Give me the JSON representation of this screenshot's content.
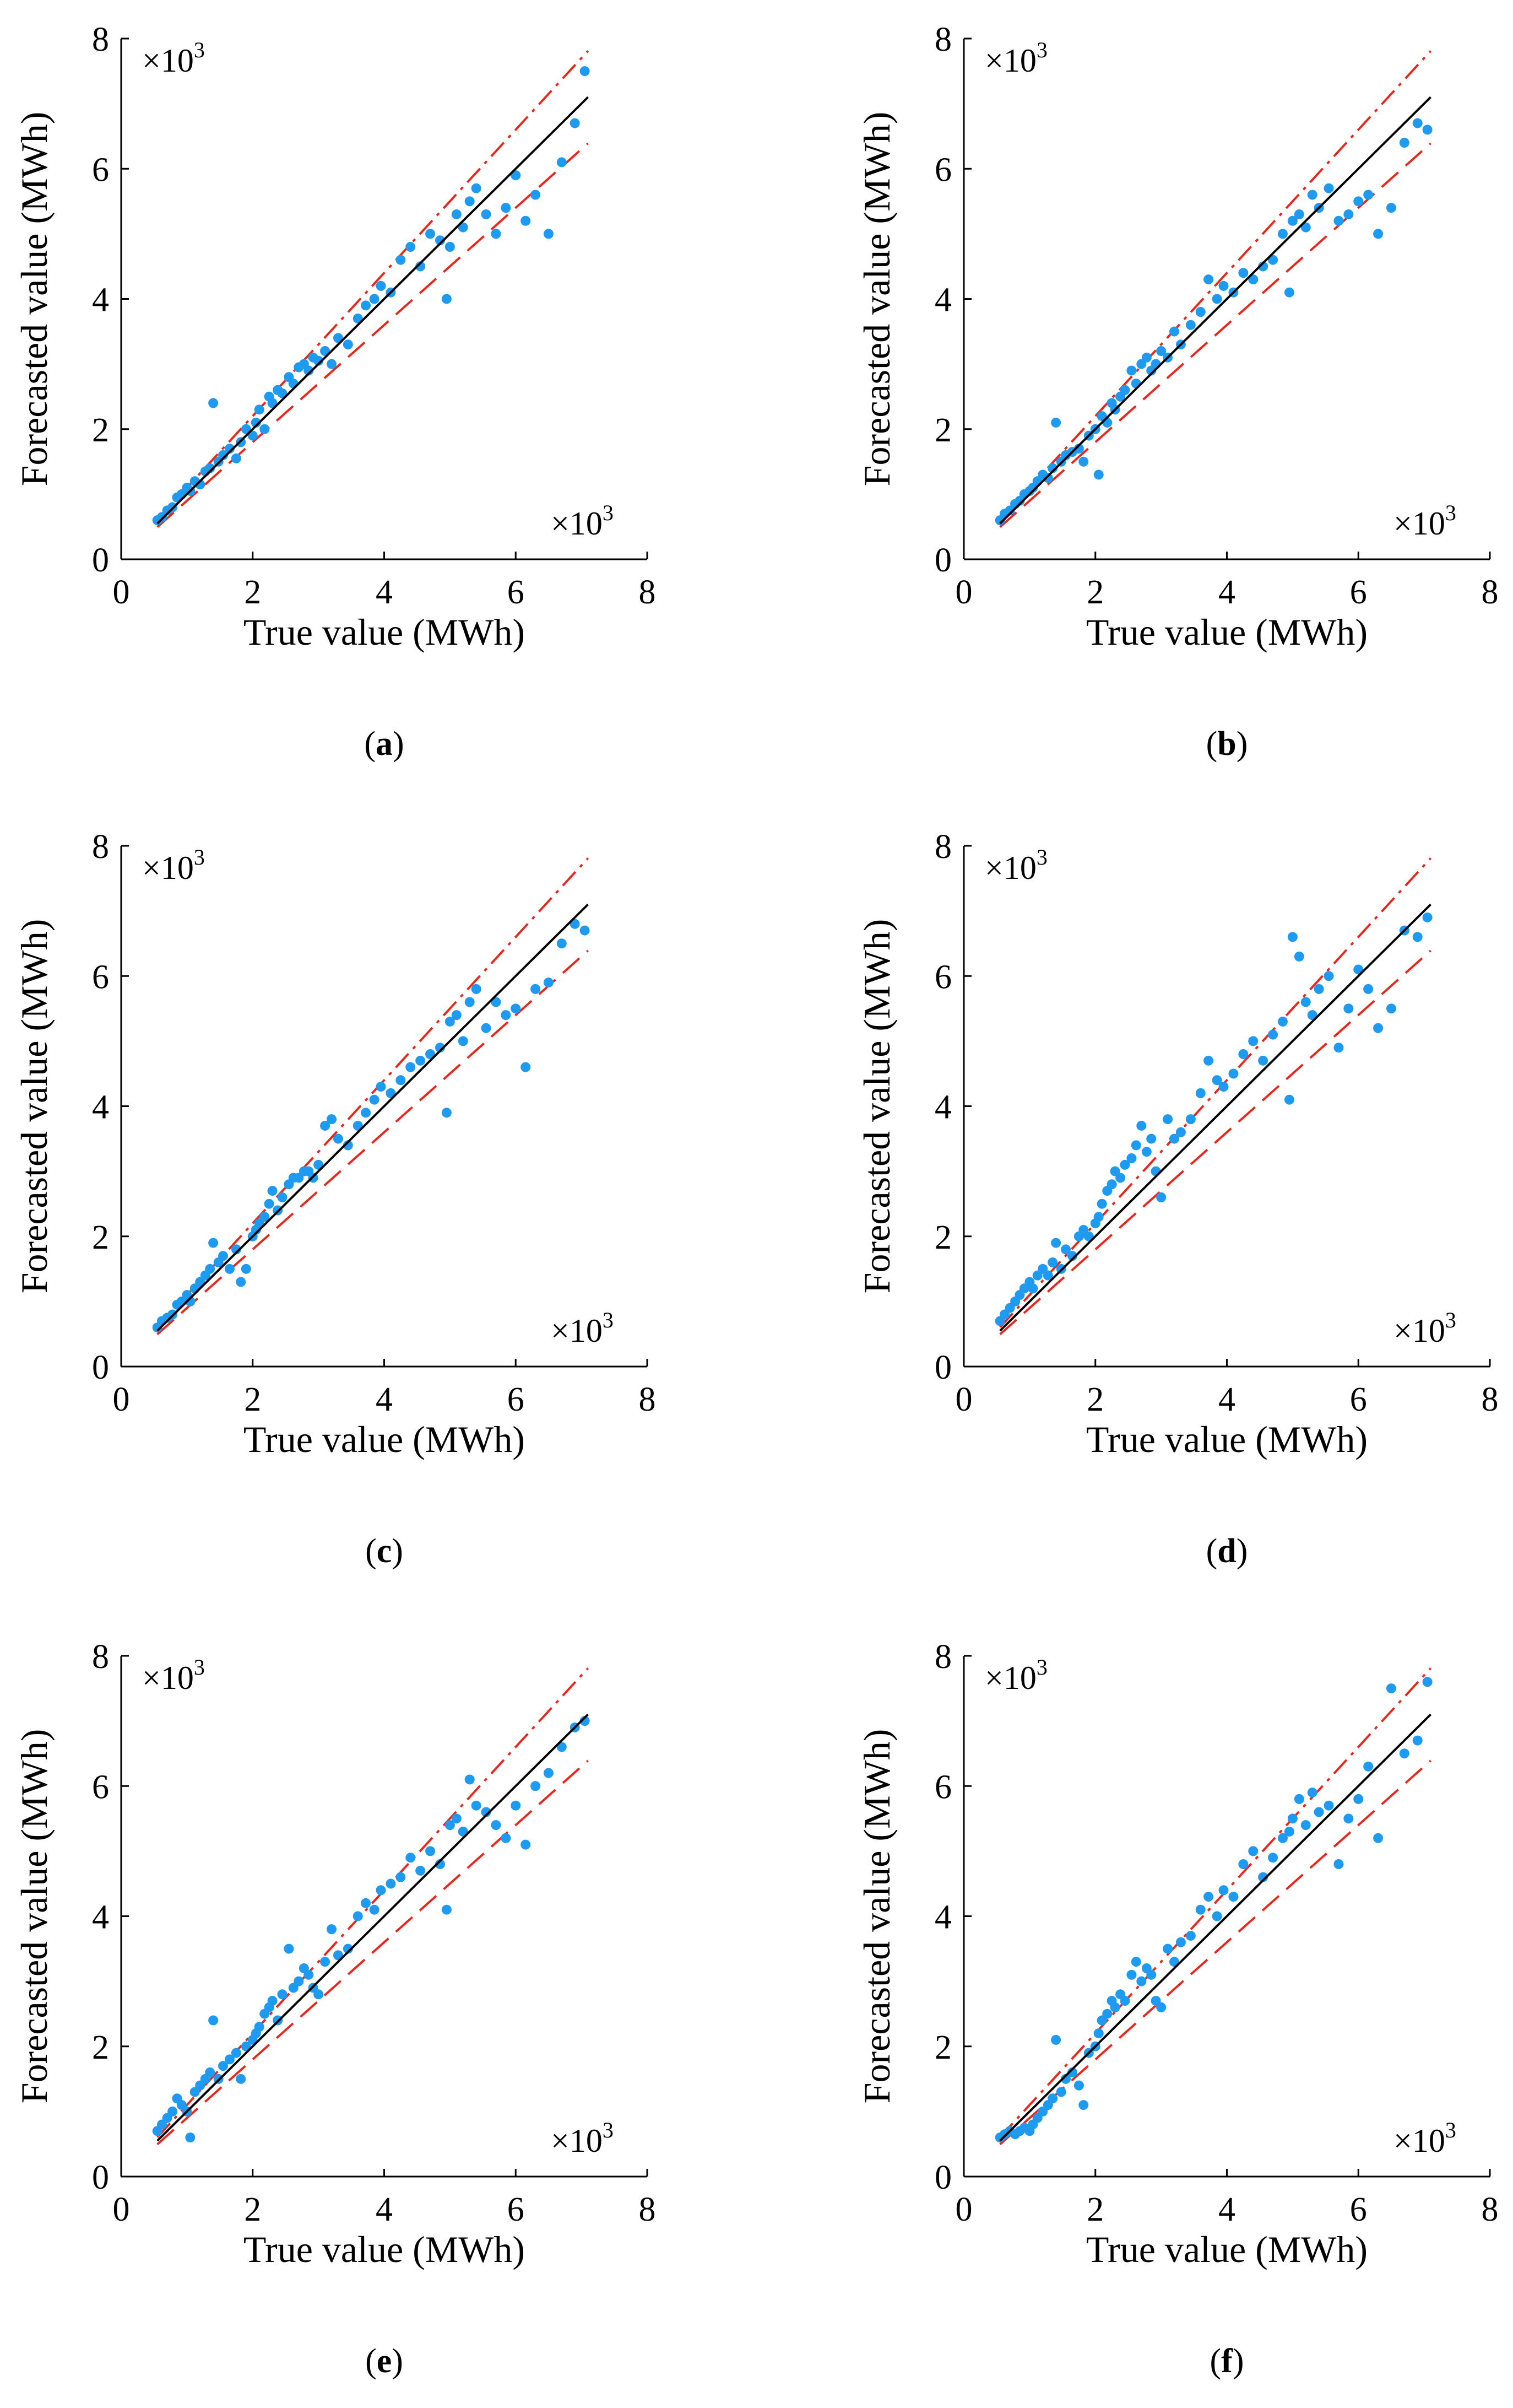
{
  "figure": {
    "panels": [
      "a",
      "b",
      "c",
      "d",
      "e",
      "f"
    ]
  },
  "chart_data": [
    {
      "id": "a",
      "caption_letter": "a",
      "type": "scatter",
      "xlabel": "True value (MWh)",
      "ylabel": "Forecasted value (MWh)",
      "xlim": [
        0,
        8
      ],
      "ylim": [
        0,
        8
      ],
      "xticks": [
        "0",
        "2",
        "4",
        "6",
        "8"
      ],
      "yticks": [
        "0",
        "2",
        "4",
        "6",
        "8"
      ],
      "x_scale_label": "×10",
      "y_scale_label": "×10",
      "scale_exponent": "3",
      "reference_lines": {
        "identity_slope": 1.0,
        "upper_bound_slope": 1.1,
        "lower_bound_slope": 0.9,
        "x_range": [
          0.55,
          7.1
        ]
      },
      "series": [
        {
          "name": "forecast",
          "color": "#1e9bf0",
          "x": [
            0.55,
            0.62,
            0.7,
            0.78,
            0.85,
            0.92,
            1.0,
            1.05,
            1.12,
            1.2,
            1.28,
            1.35,
            1.4,
            1.48,
            1.55,
            1.65,
            1.75,
            1.82,
            1.9,
            2.0,
            2.05,
            2.1,
            2.18,
            2.25,
            2.3,
            2.38,
            2.45,
            2.55,
            2.62,
            2.7,
            2.78,
            2.85,
            2.92,
            3.0,
            3.1,
            3.2,
            3.3,
            3.45,
            3.6,
            3.72,
            3.85,
            3.95,
            4.1,
            4.25,
            4.4,
            4.55,
            4.7,
            4.85,
            4.95,
            5.0,
            5.1,
            5.2,
            5.3,
            5.4,
            5.55,
            5.7,
            5.85,
            6.0,
            6.15,
            6.3,
            6.5,
            6.7,
            6.9,
            7.05
          ],
          "y": [
            0.6,
            0.65,
            0.75,
            0.8,
            0.95,
            1.0,
            1.1,
            1.05,
            1.2,
            1.15,
            1.35,
            1.4,
            2.4,
            1.5,
            1.6,
            1.7,
            1.55,
            1.8,
            2.0,
            1.9,
            2.1,
            2.3,
            2.0,
            2.5,
            2.4,
            2.6,
            2.55,
            2.8,
            2.7,
            2.95,
            3.0,
            2.9,
            3.1,
            3.05,
            3.2,
            3.0,
            3.4,
            3.3,
            3.7,
            3.9,
            4.0,
            4.2,
            4.1,
            4.6,
            4.8,
            4.5,
            5.0,
            4.9,
            4.0,
            4.8,
            5.3,
            5.1,
            5.5,
            5.7,
            5.3,
            5.0,
            5.4,
            5.9,
            5.2,
            5.6,
            5.0,
            6.1,
            6.7,
            7.5
          ]
        }
      ]
    },
    {
      "id": "b",
      "caption_letter": "b",
      "type": "scatter",
      "xlabel": "True value (MWh)",
      "ylabel": "Forecasted value (MWh)",
      "xlim": [
        0,
        8
      ],
      "ylim": [
        0,
        8
      ],
      "xticks": [
        "0",
        "2",
        "4",
        "6",
        "8"
      ],
      "yticks": [
        "0",
        "2",
        "4",
        "6",
        "8"
      ],
      "x_scale_label": "×10",
      "y_scale_label": "×10",
      "scale_exponent": "3",
      "reference_lines": {
        "identity_slope": 1.0,
        "upper_bound_slope": 1.1,
        "lower_bound_slope": 0.9,
        "x_range": [
          0.55,
          7.1
        ]
      },
      "series": [
        {
          "name": "forecast",
          "color": "#1e9bf0",
          "x": [
            0.55,
            0.62,
            0.7,
            0.78,
            0.85,
            0.92,
            1.0,
            1.05,
            1.12,
            1.2,
            1.28,
            1.35,
            1.4,
            1.48,
            1.55,
            1.65,
            1.75,
            1.82,
            1.9,
            2.0,
            2.05,
            2.1,
            2.18,
            2.25,
            2.3,
            2.38,
            2.45,
            2.55,
            2.62,
            2.7,
            2.78,
            2.85,
            2.92,
            3.0,
            3.1,
            3.2,
            3.3,
            3.45,
            3.6,
            3.72,
            3.85,
            3.95,
            4.1,
            4.25,
            4.4,
            4.55,
            4.7,
            4.85,
            4.95,
            5.0,
            5.1,
            5.2,
            5.3,
            5.4,
            5.55,
            5.7,
            5.85,
            6.0,
            6.15,
            6.3,
            6.5,
            6.7,
            6.9,
            7.05
          ],
          "y": [
            0.6,
            0.7,
            0.75,
            0.85,
            0.9,
            1.0,
            1.05,
            1.1,
            1.2,
            1.3,
            1.25,
            1.4,
            2.1,
            1.5,
            1.6,
            1.65,
            1.7,
            1.5,
            1.9,
            2.0,
            1.3,
            2.2,
            2.1,
            2.4,
            2.3,
            2.5,
            2.6,
            2.9,
            2.7,
            3.0,
            3.1,
            2.9,
            3.0,
            3.2,
            3.1,
            3.5,
            3.3,
            3.6,
            3.8,
            4.3,
            4.0,
            4.2,
            4.1,
            4.4,
            4.3,
            4.5,
            4.6,
            5.0,
            4.1,
            5.2,
            5.3,
            5.1,
            5.6,
            5.4,
            5.7,
            5.2,
            5.3,
            5.5,
            5.6,
            5.0,
            5.4,
            6.4,
            6.7,
            6.6
          ]
        }
      ]
    },
    {
      "id": "c",
      "caption_letter": "c",
      "type": "scatter",
      "xlabel": "True value (MWh)",
      "ylabel": "Forecasted value (MWh)",
      "xlim": [
        0,
        8
      ],
      "ylim": [
        0,
        8
      ],
      "xticks": [
        "0",
        "2",
        "4",
        "6",
        "8"
      ],
      "yticks": [
        "0",
        "2",
        "4",
        "6",
        "8"
      ],
      "x_scale_label": "×10",
      "y_scale_label": "×10",
      "scale_exponent": "3",
      "reference_lines": {
        "identity_slope": 1.0,
        "upper_bound_slope": 1.1,
        "lower_bound_slope": 0.9,
        "x_range": [
          0.55,
          7.1
        ]
      },
      "series": [
        {
          "name": "forecast",
          "color": "#1e9bf0",
          "x": [
            0.55,
            0.62,
            0.7,
            0.78,
            0.85,
            0.92,
            1.0,
            1.05,
            1.12,
            1.2,
            1.28,
            1.35,
            1.4,
            1.48,
            1.55,
            1.65,
            1.75,
            1.82,
            1.9,
            2.0,
            2.05,
            2.1,
            2.18,
            2.25,
            2.3,
            2.38,
            2.45,
            2.55,
            2.62,
            2.7,
            2.78,
            2.85,
            2.92,
            3.0,
            3.1,
            3.2,
            3.3,
            3.45,
            3.6,
            3.72,
            3.85,
            3.95,
            4.1,
            4.25,
            4.4,
            4.55,
            4.7,
            4.85,
            4.95,
            5.0,
            5.1,
            5.2,
            5.3,
            5.4,
            5.55,
            5.7,
            5.85,
            6.0,
            6.15,
            6.3,
            6.5,
            6.7,
            6.9,
            7.05
          ],
          "y": [
            0.6,
            0.7,
            0.75,
            0.8,
            0.95,
            1.0,
            1.1,
            1.0,
            1.2,
            1.3,
            1.4,
            1.5,
            1.9,
            1.6,
            1.7,
            1.5,
            1.8,
            1.3,
            1.5,
            2.0,
            2.1,
            2.2,
            2.3,
            2.5,
            2.7,
            2.4,
            2.6,
            2.8,
            2.9,
            2.9,
            3.0,
            3.0,
            2.9,
            3.1,
            3.7,
            3.8,
            3.5,
            3.4,
            3.7,
            3.9,
            4.1,
            4.3,
            4.2,
            4.4,
            4.6,
            4.7,
            4.8,
            4.9,
            3.9,
            5.3,
            5.4,
            5.0,
            5.6,
            5.8,
            5.2,
            5.6,
            5.4,
            5.5,
            4.6,
            5.8,
            5.9,
            6.5,
            6.8,
            6.7
          ]
        }
      ]
    },
    {
      "id": "d",
      "caption_letter": "d",
      "type": "scatter",
      "xlabel": "True value (MWh)",
      "ylabel": "Forecasted value (MWh)",
      "xlim": [
        0,
        8
      ],
      "ylim": [
        0,
        8
      ],
      "xticks": [
        "0",
        "2",
        "4",
        "6",
        "8"
      ],
      "yticks": [
        "0",
        "2",
        "4",
        "6",
        "8"
      ],
      "x_scale_label": "×10",
      "y_scale_label": "×10",
      "scale_exponent": "3",
      "reference_lines": {
        "identity_slope": 1.0,
        "upper_bound_slope": 1.1,
        "lower_bound_slope": 0.9,
        "x_range": [
          0.55,
          7.1
        ]
      },
      "series": [
        {
          "name": "forecast",
          "color": "#1e9bf0",
          "x": [
            0.55,
            0.62,
            0.7,
            0.78,
            0.85,
            0.92,
            1.0,
            1.05,
            1.12,
            1.2,
            1.28,
            1.35,
            1.4,
            1.48,
            1.55,
            1.65,
            1.75,
            1.82,
            1.9,
            2.0,
            2.05,
            2.1,
            2.18,
            2.25,
            2.3,
            2.38,
            2.45,
            2.55,
            2.62,
            2.7,
            2.78,
            2.85,
            2.92,
            3.0,
            3.1,
            3.2,
            3.3,
            3.45,
            3.6,
            3.72,
            3.85,
            3.95,
            4.1,
            4.25,
            4.4,
            4.55,
            4.7,
            4.85,
            4.95,
            5.0,
            5.1,
            5.2,
            5.3,
            5.4,
            5.55,
            5.7,
            5.85,
            6.0,
            6.15,
            6.3,
            6.5,
            6.7,
            6.9,
            7.05
          ],
          "y": [
            0.7,
            0.8,
            0.9,
            1.0,
            1.1,
            1.2,
            1.3,
            1.2,
            1.4,
            1.5,
            1.4,
            1.6,
            1.9,
            1.5,
            1.8,
            1.7,
            2.0,
            2.1,
            2.0,
            2.2,
            2.3,
            2.5,
            2.7,
            2.8,
            3.0,
            2.9,
            3.1,
            3.2,
            3.4,
            3.7,
            3.3,
            3.5,
            3.0,
            2.6,
            3.8,
            3.5,
            3.6,
            3.8,
            4.2,
            4.7,
            4.4,
            4.3,
            4.5,
            4.8,
            5.0,
            4.7,
            5.1,
            5.3,
            4.1,
            6.6,
            6.3,
            5.6,
            5.4,
            5.8,
            6.0,
            4.9,
            5.5,
            6.1,
            5.8,
            5.2,
            5.5,
            6.7,
            6.6,
            6.9
          ]
        }
      ]
    },
    {
      "id": "e",
      "caption_letter": "e",
      "type": "scatter",
      "xlabel": "True value (MWh)",
      "ylabel": "Forecasted value (MWh)",
      "xlim": [
        0,
        8
      ],
      "ylim": [
        0,
        8
      ],
      "xticks": [
        "0",
        "2",
        "4",
        "6",
        "8"
      ],
      "yticks": [
        "0",
        "2",
        "4",
        "6",
        "8"
      ],
      "x_scale_label": "×10",
      "y_scale_label": "×10",
      "scale_exponent": "3",
      "reference_lines": {
        "identity_slope": 1.0,
        "upper_bound_slope": 1.1,
        "lower_bound_slope": 0.9,
        "x_range": [
          0.55,
          7.1
        ]
      },
      "series": [
        {
          "name": "forecast",
          "color": "#1e9bf0",
          "x": [
            0.55,
            0.62,
            0.7,
            0.78,
            0.85,
            0.92,
            1.0,
            1.05,
            1.12,
            1.2,
            1.28,
            1.35,
            1.4,
            1.48,
            1.55,
            1.65,
            1.75,
            1.82,
            1.9,
            2.0,
            2.05,
            2.1,
            2.18,
            2.25,
            2.3,
            2.38,
            2.45,
            2.55,
            2.62,
            2.7,
            2.78,
            2.85,
            2.92,
            3.0,
            3.1,
            3.2,
            3.3,
            3.45,
            3.6,
            3.72,
            3.85,
            3.95,
            4.1,
            4.25,
            4.4,
            4.55,
            4.7,
            4.85,
            4.95,
            5.0,
            5.1,
            5.2,
            5.3,
            5.4,
            5.55,
            5.7,
            5.85,
            6.0,
            6.15,
            6.3,
            6.5,
            6.7,
            6.9,
            7.05
          ],
          "y": [
            0.7,
            0.8,
            0.9,
            1.0,
            1.2,
            1.1,
            1.0,
            0.6,
            1.3,
            1.4,
            1.5,
            1.6,
            2.4,
            1.5,
            1.7,
            1.8,
            1.9,
            1.5,
            2.0,
            2.1,
            2.2,
            2.3,
            2.5,
            2.6,
            2.7,
            2.4,
            2.8,
            3.5,
            2.9,
            3.0,
            3.2,
            3.1,
            2.9,
            2.8,
            3.3,
            3.8,
            3.4,
            3.5,
            4.0,
            4.2,
            4.1,
            4.4,
            4.5,
            4.6,
            4.9,
            4.7,
            5.0,
            4.8,
            4.1,
            5.4,
            5.5,
            5.3,
            6.1,
            5.7,
            5.6,
            5.4,
            5.2,
            5.7,
            5.1,
            6.0,
            6.2,
            6.6,
            6.9,
            7.0
          ]
        }
      ]
    },
    {
      "id": "f",
      "caption_letter": "f",
      "type": "scatter",
      "xlabel": "True value (MWh)",
      "ylabel": "Forecasted value (MWh)",
      "xlim": [
        0,
        8
      ],
      "ylim": [
        0,
        8
      ],
      "xticks": [
        "0",
        "2",
        "4",
        "6",
        "8"
      ],
      "yticks": [
        "0",
        "2",
        "4",
        "6",
        "8"
      ],
      "x_scale_label": "×10",
      "y_scale_label": "×10",
      "scale_exponent": "3",
      "reference_lines": {
        "identity_slope": 1.0,
        "upper_bound_slope": 1.1,
        "lower_bound_slope": 0.9,
        "x_range": [
          0.55,
          7.1
        ]
      },
      "series": [
        {
          "name": "forecast",
          "color": "#1e9bf0",
          "x": [
            0.55,
            0.62,
            0.7,
            0.78,
            0.85,
            0.92,
            1.0,
            1.05,
            1.12,
            1.2,
            1.28,
            1.35,
            1.4,
            1.48,
            1.55,
            1.65,
            1.75,
            1.82,
            1.9,
            2.0,
            2.05,
            2.1,
            2.18,
            2.25,
            2.3,
            2.38,
            2.45,
            2.55,
            2.62,
            2.7,
            2.78,
            2.85,
            2.92,
            3.0,
            3.1,
            3.2,
            3.3,
            3.45,
            3.6,
            3.72,
            3.85,
            3.95,
            4.1,
            4.25,
            4.4,
            4.55,
            4.7,
            4.85,
            4.95,
            5.0,
            5.1,
            5.2,
            5.3,
            5.4,
            5.55,
            5.7,
            5.85,
            6.0,
            6.15,
            6.3,
            6.5,
            6.7,
            6.9,
            7.05
          ],
          "y": [
            0.6,
            0.65,
            0.7,
            0.65,
            0.7,
            0.75,
            0.7,
            0.8,
            0.9,
            1.0,
            1.1,
            1.2,
            2.1,
            1.3,
            1.5,
            1.6,
            1.4,
            1.1,
            1.9,
            2.0,
            2.2,
            2.4,
            2.5,
            2.7,
            2.6,
            2.8,
            2.7,
            3.1,
            3.3,
            3.0,
            3.2,
            3.1,
            2.7,
            2.6,
            3.5,
            3.3,
            3.6,
            3.7,
            4.1,
            4.3,
            4.0,
            4.4,
            4.3,
            4.8,
            5.0,
            4.6,
            4.9,
            5.2,
            5.3,
            5.5,
            5.8,
            5.4,
            5.9,
            5.6,
            5.7,
            4.8,
            5.5,
            5.8,
            6.3,
            5.2,
            7.5,
            6.5,
            6.7,
            7.6
          ]
        }
      ]
    }
  ]
}
